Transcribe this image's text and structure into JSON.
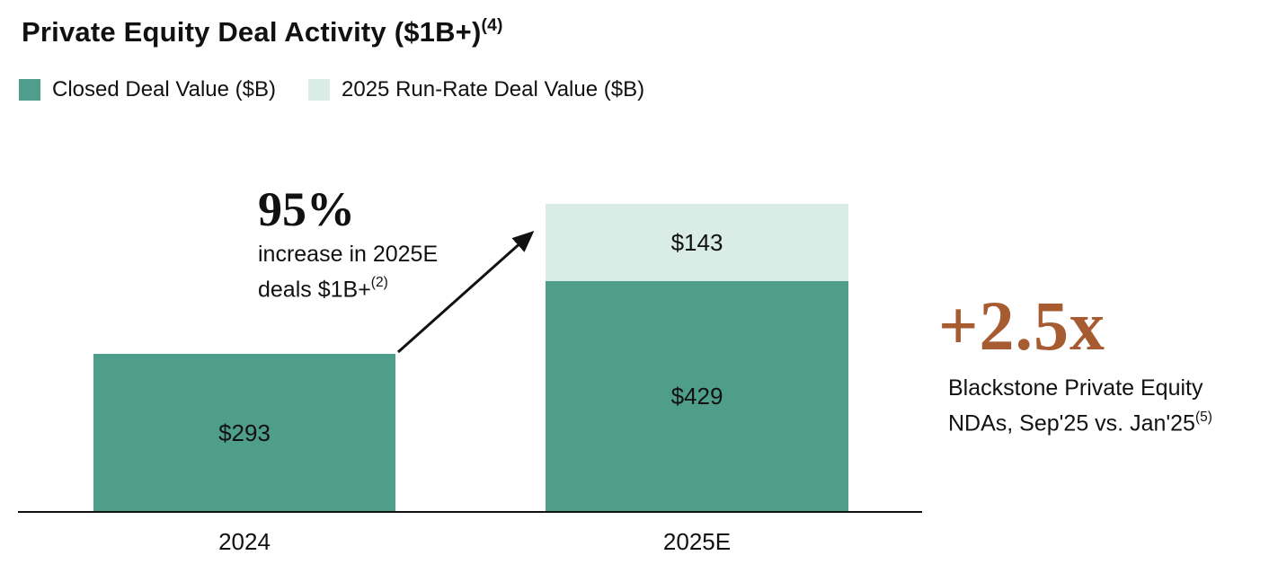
{
  "title": {
    "text": "Private Equity Deal Activity ($1B+)",
    "footnote_sup": "(4)"
  },
  "legend": {
    "items": [
      {
        "label": "Closed Deal Value ($B)",
        "color": "#4f9e8b"
      },
      {
        "label": "2025 Run-Rate Deal Value ($B)",
        "color": "#d9ece6"
      }
    ]
  },
  "growth_annotation": {
    "headline": "95%",
    "line1": "increase in 2025E",
    "line2": "deals $1B+",
    "footnote_sup": "(2)"
  },
  "side_stat": {
    "value": "+2.5x",
    "color": "#a65b31",
    "line1": "Blackstone Private Equity",
    "line2": "NDAs, Sep'25 vs. Jan'25",
    "footnote_sup": "(5)"
  },
  "chart_data": {
    "type": "bar",
    "stacked": true,
    "title": "Private Equity Deal Activity ($1B+)",
    "unit": "$B",
    "categories": [
      "2024",
      "2025E"
    ],
    "series": [
      {
        "name": "Closed Deal Value ($B)",
        "color": "#4f9e8b",
        "values": [
          293,
          429
        ]
      },
      {
        "name": "2025 Run-Rate Deal Value ($B)",
        "color": "#d9ece6",
        "values": [
          0,
          143
        ]
      }
    ],
    "totals": [
      293,
      572
    ],
    "ylim": [
      0,
      600
    ],
    "grid": false,
    "legend_position": "top-left",
    "bars": [
      {
        "category": "2024",
        "segments": [
          {
            "series": "Closed Deal Value ($B)",
            "value": 293,
            "label": "$293",
            "color": "#4f9e8b"
          }
        ]
      },
      {
        "category": "2025E",
        "segments": [
          {
            "series": "Closed Deal Value ($B)",
            "value": 429,
            "label": "$429",
            "color": "#4f9e8b"
          },
          {
            "series": "2025 Run-Rate Deal Value ($B)",
            "value": 143,
            "label": "$143",
            "color": "#d9ece6"
          }
        ]
      }
    ],
    "annotations": [
      {
        "type": "arrow-callout",
        "text": "95% increase in 2025E deals $1B+(2)",
        "from_category": "2024",
        "to_category": "2025E"
      },
      {
        "type": "side-stat",
        "text": "+2.5x Blackstone Private Equity NDAs, Sep'25 vs. Jan'25(5)"
      }
    ]
  }
}
